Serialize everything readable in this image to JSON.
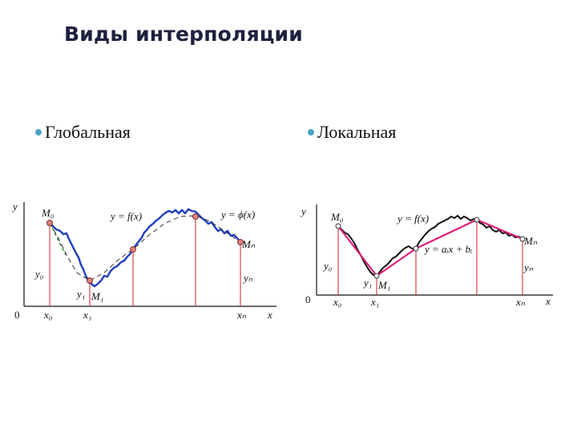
{
  "title": "Виды интерполяции",
  "bullets": {
    "global": "Глобальная",
    "local": "Локальная"
  },
  "left_diagram": {
    "y_axis": "y",
    "x_axis": "x",
    "origin": "0",
    "m0": "M₀",
    "m1": "M₁",
    "mn": "Mₙ",
    "y0": "y₀",
    "y1": "y₁",
    "yn": "yₙ",
    "x0": "x₀",
    "x1": "x₁",
    "xn": "xₙ",
    "f_label": "y = f(x)",
    "phi_label": "y = ϕ(x)",
    "colors": {
      "curve": "#1f3fbf",
      "interp": "#333333",
      "verticals": "#d02020",
      "start_segment": "#2a7a2a"
    }
  },
  "right_diagram": {
    "y_axis": "y",
    "x_axis": "x",
    "origin": "0",
    "m0": "M₀",
    "m1": "M₁",
    "mn": "Mₙ",
    "y0": "y₀",
    "y1": "y₁",
    "yn": "yₙ",
    "x0": "x₀",
    "x1": "x₁",
    "xn": "xₙ",
    "f_label": "y = f(x)",
    "linear_label": "y = aᵢx + bᵢ",
    "colors": {
      "curve": "#111111",
      "interp": "#e0207a",
      "verticals": "#d02020"
    }
  }
}
